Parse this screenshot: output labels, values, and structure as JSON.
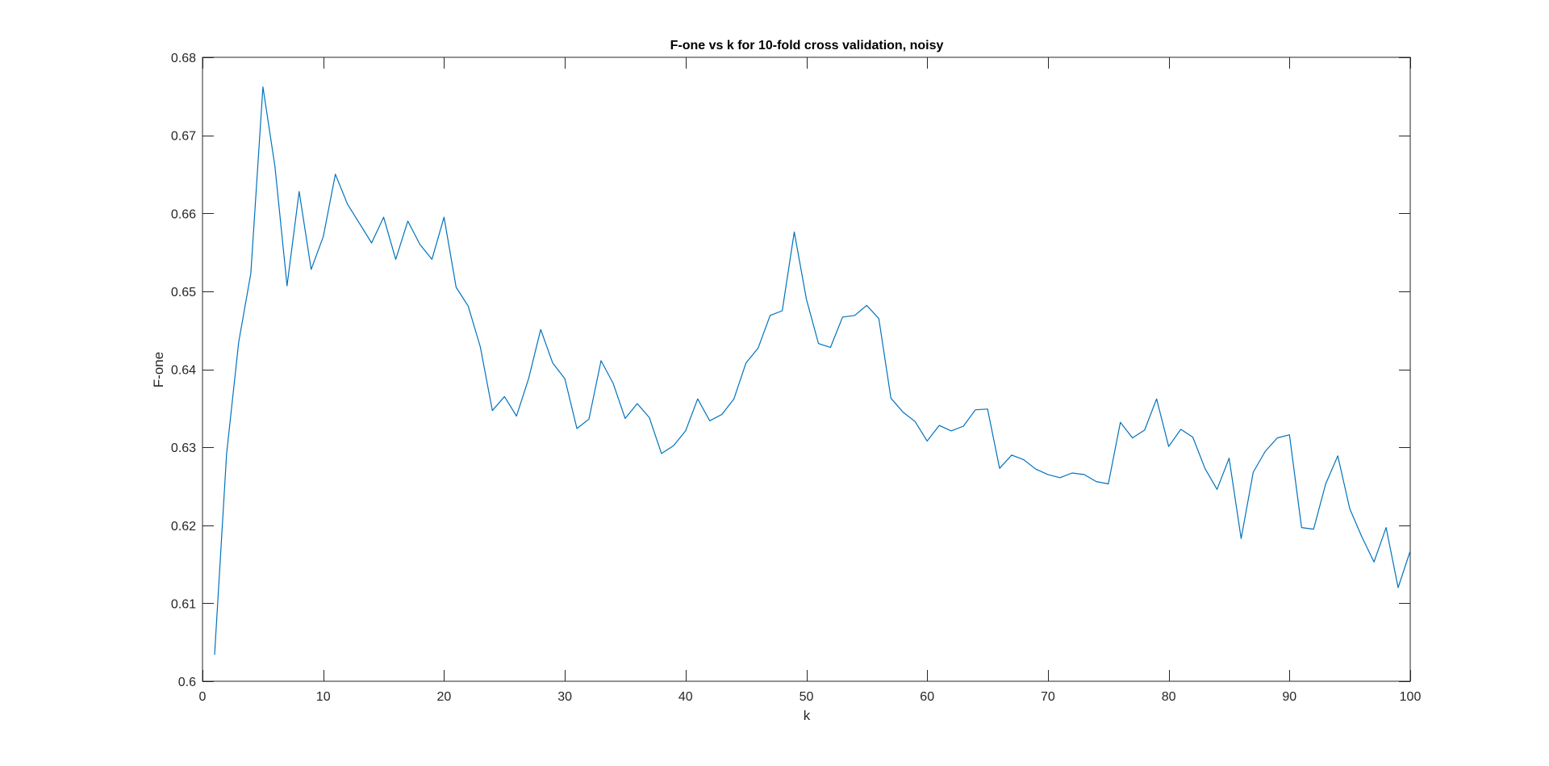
{
  "chart_data": {
    "type": "line",
    "title": "F-one vs k for 10-fold cross validation, noisy",
    "xlabel": "k",
    "ylabel": "F-one",
    "xlim": [
      0,
      100
    ],
    "ylim": [
      0.6,
      0.68
    ],
    "xticks": [
      0,
      10,
      20,
      30,
      40,
      50,
      60,
      70,
      80,
      90,
      100
    ],
    "xtick_labels": [
      "0",
      "10",
      "20",
      "30",
      "40",
      "50",
      "60",
      "70",
      "80",
      "90",
      "100"
    ],
    "yticks": [
      0.6,
      0.61,
      0.62,
      0.63,
      0.64,
      0.65,
      0.66,
      0.67,
      0.68
    ],
    "ytick_labels": [
      "0.6",
      "0.61",
      "0.62",
      "0.63",
      "0.64",
      "0.65",
      "0.66",
      "0.67",
      "0.68"
    ],
    "grid": false,
    "line_color": "#0072BD",
    "axis_color": "#262626",
    "series": [
      {
        "x": [
          1,
          2,
          3,
          4,
          5,
          6,
          7,
          8,
          9,
          10,
          11,
          12,
          13,
          14,
          15,
          16,
          17,
          18,
          19,
          20,
          21,
          22,
          23,
          24,
          25,
          26,
          27,
          28,
          29,
          30,
          31,
          32,
          33,
          34,
          35,
          36,
          37,
          38,
          39,
          40,
          41,
          42,
          43,
          44,
          45,
          46,
          47,
          48,
          49,
          50,
          51,
          52,
          53,
          54,
          55,
          56,
          57,
          58,
          59,
          60,
          61,
          62,
          63,
          64,
          65,
          66,
          67,
          68,
          69,
          70,
          71,
          72,
          73,
          74,
          75,
          76,
          77,
          78,
          79,
          80,
          81,
          82,
          83,
          84,
          85,
          86,
          87,
          88,
          89,
          90,
          91,
          92,
          93,
          94,
          95,
          96,
          97,
          98,
          99,
          100
        ],
        "values": [
          0.6034,
          0.6292,
          0.6435,
          0.6523,
          0.6762,
          0.666,
          0.6507,
          0.6628,
          0.6528,
          0.657,
          0.665,
          0.6612,
          0.6587,
          0.6562,
          0.6595,
          0.6541,
          0.659,
          0.656,
          0.6541,
          0.6595,
          0.6505,
          0.6481,
          0.6429,
          0.6347,
          0.6365,
          0.634,
          0.6388,
          0.6451,
          0.6408,
          0.6388,
          0.6324,
          0.6336,
          0.6411,
          0.6382,
          0.6337,
          0.6356,
          0.6338,
          0.6292,
          0.6302,
          0.6321,
          0.6362,
          0.6334,
          0.6342,
          0.6362,
          0.6408,
          0.6427,
          0.6469,
          0.6475,
          0.6576,
          0.649,
          0.6433,
          0.6428,
          0.6467,
          0.6469,
          0.6482,
          0.6465,
          0.6363,
          0.6345,
          0.6333,
          0.6308,
          0.6328,
          0.6321,
          0.6327,
          0.6348,
          0.6349,
          0.6273,
          0.629,
          0.6284,
          0.6272,
          0.6265,
          0.6261,
          0.6267,
          0.6265,
          0.6256,
          0.6253,
          0.6332,
          0.6312,
          0.6322,
          0.6362,
          0.6301,
          0.6323,
          0.6313,
          0.6273,
          0.6246,
          0.6286,
          0.6183,
          0.6268,
          0.6295,
          0.6312,
          0.6316,
          0.6197,
          0.6195,
          0.6253,
          0.6289,
          0.6221,
          0.6185,
          0.6153,
          0.6197,
          0.612,
          0.6167
        ]
      }
    ]
  }
}
